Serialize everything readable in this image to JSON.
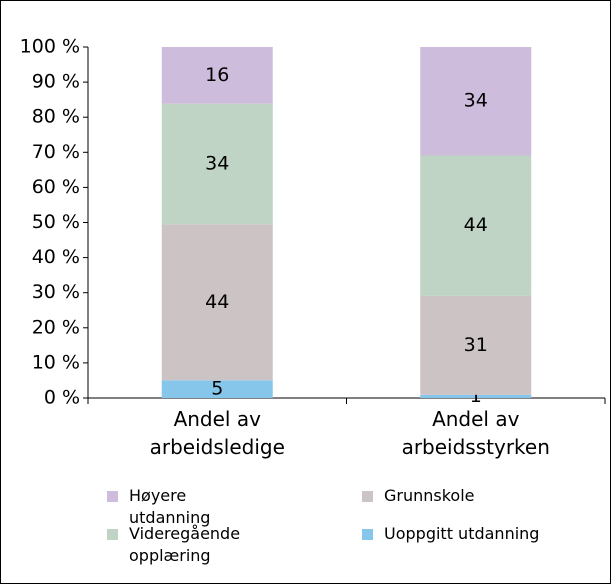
{
  "chart_data": {
    "type": "bar",
    "stacking": "percent",
    "categories": [
      "Andel av arbeidsledige",
      "Andel av arbeidsstyrken"
    ],
    "series": [
      {
        "name": "Uoppgitt utdanning",
        "color": "#86c6ea",
        "values": [
          5,
          1
        ]
      },
      {
        "name": "Grunnskole",
        "color": "#cbc3c4",
        "values": [
          44,
          31
        ]
      },
      {
        "name": "Videregående opplæring",
        "color": "#bfd4c5",
        "values": [
          34,
          44
        ]
      },
      {
        "name": "Høyere utdanning",
        "color": "#cdbcdc",
        "values": [
          16,
          34
        ]
      }
    ],
    "ylim": [
      0,
      100
    ],
    "yticks": [
      {
        "value": 0,
        "label": "0 %"
      },
      {
        "value": 10,
        "label": "10 %"
      },
      {
        "value": 20,
        "label": "20 %"
      },
      {
        "value": 30,
        "label": "30 %"
      },
      {
        "value": 40,
        "label": "40 %"
      },
      {
        "value": 50,
        "label": "50 %"
      },
      {
        "value": 60,
        "label": "60 %"
      },
      {
        "value": 70,
        "label": "70 %"
      },
      {
        "value": 80,
        "label": "80 %"
      },
      {
        "value": 90,
        "label": "90 %"
      },
      {
        "value": 100,
        "label": "100 %"
      }
    ],
    "legend": "bottom"
  }
}
